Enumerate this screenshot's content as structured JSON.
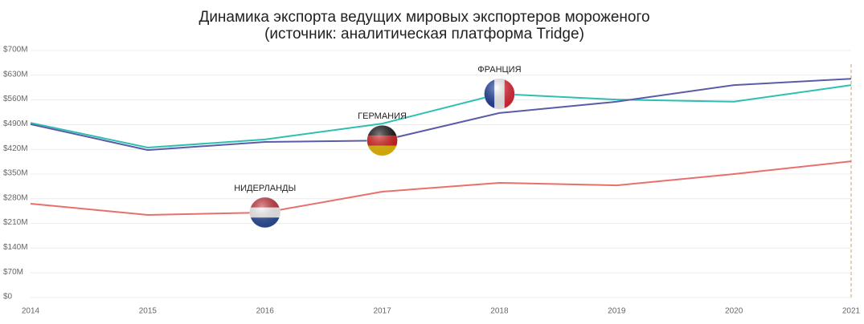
{
  "chart_data": {
    "type": "line",
    "title": [
      "Динамика экспорта ведущих мировых экспортеров мороженого",
      "(источник: аналитическая платформа Tridge)"
    ],
    "categories": [
      "2014",
      "2015",
      "2016",
      "2017",
      "2018",
      "2019",
      "2020",
      "2021"
    ],
    "series": [
      {
        "name": "ФРАНЦИЯ",
        "color": "#2ebfb3",
        "values": [
          495,
          425,
          448,
          493,
          577,
          561,
          555,
          602
        ]
      },
      {
        "name": "ГЕРМАНИЯ",
        "color": "#5b5ba8",
        "values": [
          491,
          418,
          441,
          445,
          523,
          555,
          602,
          620
        ]
      },
      {
        "name": "НИДЕРЛАНДЫ",
        "color": "#e8706b",
        "values": [
          266,
          234,
          241,
          300,
          325,
          318,
          350,
          386
        ]
      }
    ],
    "ylim": [
      0,
      700
    ],
    "yticks": [
      {
        "value": 0,
        "label": "$0"
      },
      {
        "value": 70,
        "label": "$70M"
      },
      {
        "value": 140,
        "label": "$140M"
      },
      {
        "value": 210,
        "label": "$210M"
      },
      {
        "value": 280,
        "label": "$280M"
      },
      {
        "value": 350,
        "label": "$350M"
      },
      {
        "value": 420,
        "label": "$420M"
      },
      {
        "value": 490,
        "label": "$490M"
      },
      {
        "value": 560,
        "label": "$560M"
      },
      {
        "value": 630,
        "label": "$630M"
      },
      {
        "value": 700,
        "label": "$700M"
      }
    ],
    "grid": true
  }
}
